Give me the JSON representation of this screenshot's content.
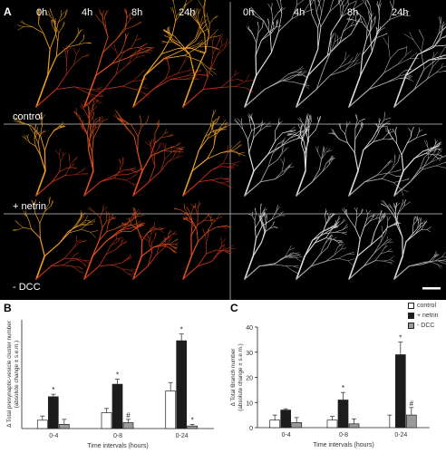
{
  "panel_labels": {
    "a": "A",
    "b": "B",
    "c": "C"
  },
  "timepoints": [
    "0h",
    "4h",
    "8h",
    "24h"
  ],
  "conditions": [
    "control",
    "+ netrin",
    "- DCC"
  ],
  "colors": {
    "control": "#ffffff",
    "netrin": "#1c1c1c",
    "dcc": "#9a9a9a"
  },
  "legend": [
    {
      "label": "control",
      "color": "#ffffff"
    },
    {
      "label": "+ netrin",
      "color": "#1c1c1c"
    },
    {
      "label": "- DCC",
      "color": "#9a9a9a"
    }
  ],
  "chart_data": [
    {
      "type": "bar",
      "panel": "B",
      "categories": [
        "0-4",
        "0-8",
        "0-24"
      ],
      "ylabel": "Δ Total presynaptic-vesicle cluster number (absolute change ± s.e.m.)",
      "xlabel": "Time intervals (hours)",
      "ylim": [
        0,
        130
      ],
      "series": [
        {
          "name": "control",
          "values": [
            10,
            19,
            45
          ],
          "errors": [
            5,
            5,
            10
          ]
        },
        {
          "name": "+ netrin",
          "values": [
            38,
            53,
            105
          ],
          "errors": [
            3,
            6,
            8
          ]
        },
        {
          "name": "- DCC",
          "values": [
            5,
            7,
            3
          ],
          "errors": [
            6,
            4,
            2
          ]
        }
      ],
      "annotations": [
        "*",
        "*",
        "#",
        "*",
        "*"
      ]
    },
    {
      "type": "bar",
      "panel": "C",
      "categories": [
        "0-4",
        "0-8",
        "0-24"
      ],
      "ylabel": "Δ Total Branch number (absolute change ± s.e.m.)",
      "xlabel": "Time intervals (hours)",
      "yticks": [
        0,
        10,
        20,
        30,
        40
      ],
      "ylim": [
        0,
        40
      ],
      "series": [
        {
          "name": "control",
          "values": [
            3,
            3,
            0
          ],
          "errors": [
            2,
            1.5,
            5
          ]
        },
        {
          "name": "+ netrin",
          "values": [
            7,
            11,
            29
          ],
          "errors": [
            0.5,
            3,
            5
          ]
        },
        {
          "name": "- DCC",
          "values": [
            2,
            1.5,
            5
          ],
          "errors": [
            2,
            2,
            3
          ]
        }
      ],
      "annotations": [
        "*",
        "*",
        "#"
      ]
    }
  ]
}
